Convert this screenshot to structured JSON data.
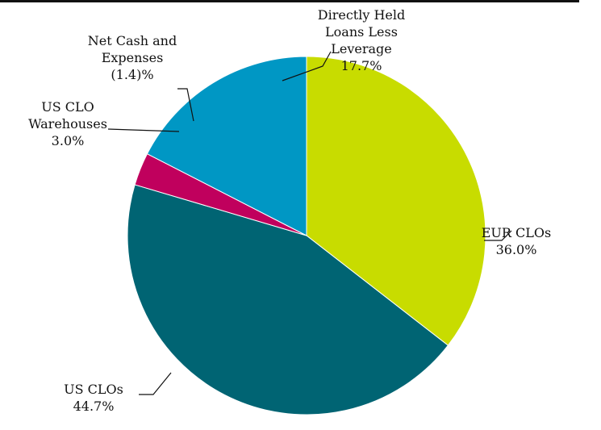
{
  "chart_data": {
    "type": "pie",
    "title": "",
    "start_angle_deg": 90,
    "direction": "clockwise",
    "slices": [
      {
        "label_lines": [
          "EUR CLOs"
        ],
        "value_text": "36.0%",
        "value": 36.0,
        "color": "#c8dc00"
      },
      {
        "label_lines": [
          "US CLOs"
        ],
        "value_text": "44.7%",
        "value": 44.7,
        "color": "#006473"
      },
      {
        "label_lines": [
          "US CLO",
          "Warehouses"
        ],
        "value_text": "3.0%",
        "value": 3.0,
        "color": "#c0005d"
      },
      {
        "label_lines": [
          "Net Cash and",
          "Expenses"
        ],
        "value_text": "(1.4)%",
        "value": -1.4,
        "color": "#111111"
      },
      {
        "label_lines": [
          "Directly Held",
          "Loans Less",
          "Leverage"
        ],
        "value_text": "17.7%",
        "value": 17.7,
        "color": "#0097c4"
      }
    ]
  }
}
